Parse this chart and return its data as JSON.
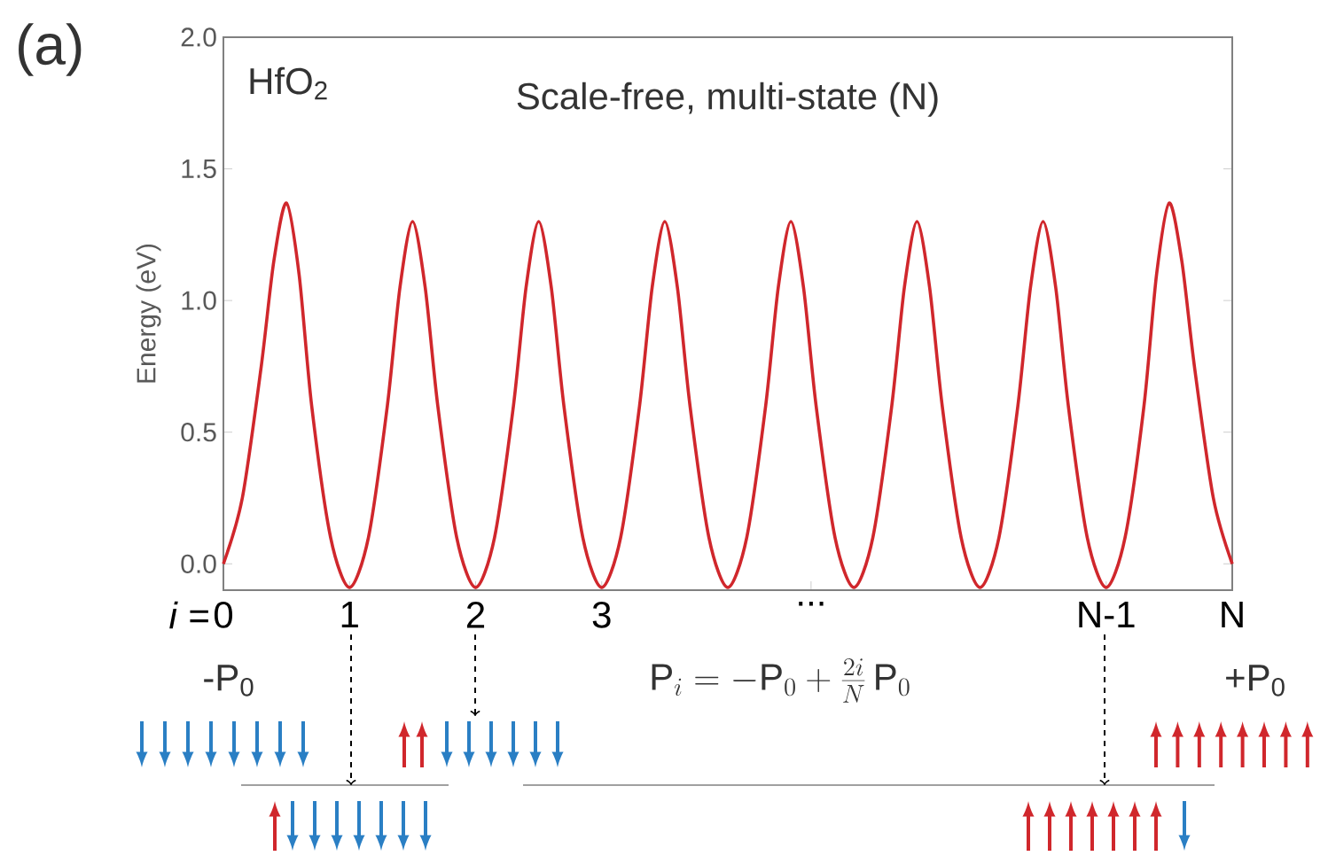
{
  "chart_data": {
    "type": "line",
    "title": "Scale-free, multi-state (N)",
    "xlabel": "*i* =",
    "ylabel": "Energy (eV)",
    "x": [
      0,
      0.15,
      0.3,
      0.4,
      0.5,
      0.6,
      0.7,
      0.85,
      1,
      1.15,
      1.3,
      1.4,
      1.5,
      1.6,
      1.7,
      1.85,
      2,
      2.15,
      2.3,
      2.4,
      2.5,
      2.6,
      2.7,
      2.85,
      3,
      3.15,
      3.3,
      3.4,
      3.5,
      3.6,
      3.7,
      3.85,
      4,
      4.15,
      4.3,
      4.4,
      4.5,
      4.6,
      4.7,
      4.85,
      5,
      5.15,
      5.3,
      5.4,
      5.5,
      5.6,
      5.7,
      5.85,
      6,
      6.15,
      6.3,
      6.4,
      6.5,
      6.6,
      6.7,
      6.85,
      7,
      7.15,
      7.3,
      7.4,
      7.5,
      7.6,
      7.7,
      7.85,
      8
    ],
    "series": [
      {
        "color": "#d0272c",
        "values": [
          0.0,
          0.25,
          0.75,
          1.15,
          1.37,
          1.1,
          0.6,
          0.1,
          -0.09,
          0.1,
          0.6,
          1.05,
          1.3,
          1.05,
          0.6,
          0.1,
          -0.09,
          0.1,
          0.6,
          1.05,
          1.3,
          1.05,
          0.6,
          0.1,
          -0.09,
          0.1,
          0.6,
          1.05,
          1.3,
          1.05,
          0.6,
          0.1,
          -0.09,
          0.1,
          0.6,
          1.05,
          1.3,
          1.05,
          0.6,
          0.1,
          -0.09,
          0.1,
          0.6,
          1.05,
          1.3,
          1.05,
          0.6,
          0.1,
          -0.09,
          0.1,
          0.6,
          1.05,
          1.3,
          1.05,
          0.6,
          0.1,
          -0.09,
          0.1,
          0.6,
          1.1,
          1.37,
          1.15,
          0.75,
          0.25,
          0.0
        ]
      }
    ],
    "xlim": [
      0,
      8
    ],
    "ylim": [
      -0.1,
      2.0
    ],
    "xticks": [
      0,
      1,
      2,
      3,
      {
        "value": 4.66,
        "label": "..."
      },
      {
        "value": 7,
        "label": "N-1"
      },
      {
        "value": 8,
        "label": "N"
      }
    ],
    "yticks": [
      {
        "value": 0,
        "label": "0.0"
      },
      {
        "value": 0.5,
        "label": "0.5"
      },
      {
        "value": 1,
        "label": "1.0"
      },
      {
        "value": 1.5,
        "label": "1.5"
      },
      {
        "value": 2,
        "label": "2.0"
      }
    ],
    "marker": "none",
    "line_style": "solid",
    "annotations": [
      "(a)",
      "HfO$_{2}$",
      "-P$_{0}$",
      "+P$_{0}$",
      "\\mathrm{P}_{i} = -\\mathrm{P}_0+\\frac{2i}{N}\\,\\mathrm{P}_0"
    ]
  }
}
